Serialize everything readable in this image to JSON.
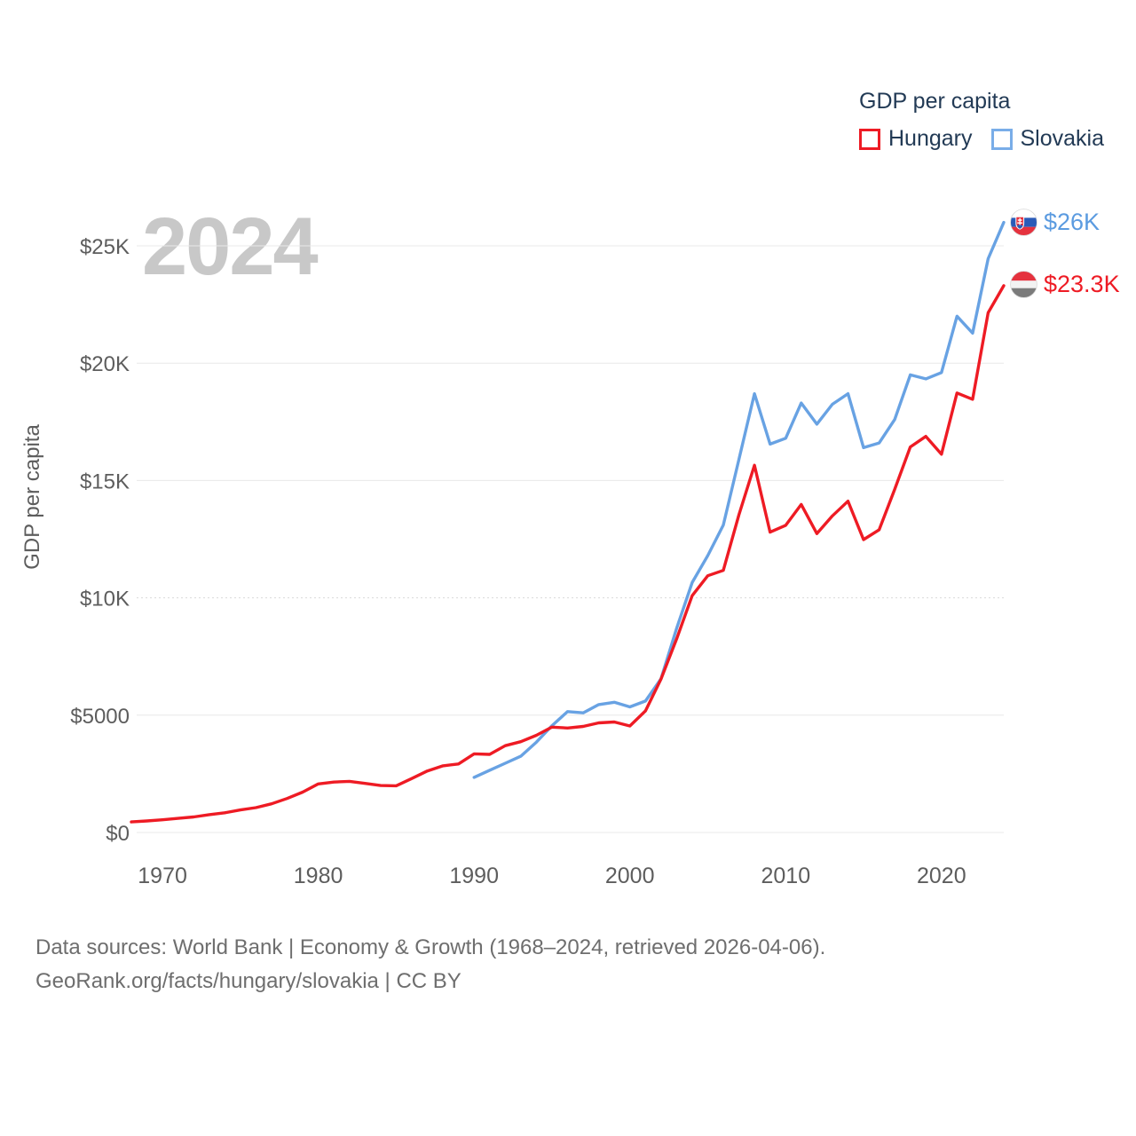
{
  "legend": {
    "title": "GDP per capita",
    "items": [
      {
        "label": "Hungary",
        "color": "#ee1b24"
      },
      {
        "label": "Slovakia",
        "color": "#79ade8"
      }
    ]
  },
  "watermark": "2024",
  "end_labels": {
    "slovakia": {
      "text": "$26K",
      "color": "#5b9be0",
      "flag": "slovakia-flag"
    },
    "hungary": {
      "text": "$23.3K",
      "color": "#ee1b24",
      "flag": "hungary-flag"
    }
  },
  "footer": {
    "line1": "Data sources: World Bank | Economy & Growth (1968–2024, retrieved 2026-04-06).",
    "line2": "GeoRank.org/facts/hungary/slovakia | CC BY"
  },
  "chart_data": {
    "type": "line",
    "title": "GDP per capita",
    "ylabel": "GDP per capita",
    "xlim": [
      1968,
      2024
    ],
    "ylim": [
      0,
      26500
    ],
    "grid": true,
    "legend_position": "top-right",
    "y_ticks": [
      {
        "value": 0,
        "label": "$0"
      },
      {
        "value": 5000,
        "label": "$5000"
      },
      {
        "value": 10000,
        "label": "$10K",
        "dotted": true
      },
      {
        "value": 15000,
        "label": "$15K"
      },
      {
        "value": 20000,
        "label": "$20K"
      },
      {
        "value": 25000,
        "label": "$25K"
      }
    ],
    "x_ticks": [
      1970,
      1980,
      1990,
      2000,
      2010,
      2020
    ],
    "series": [
      {
        "name": "Hungary",
        "color": "#ee1b24",
        "start_year": 1968,
        "end_value_label": "$23.3K",
        "values": [
          450,
          490,
          540,
          600,
          660,
          760,
          840,
          960,
          1060,
          1220,
          1450,
          1720,
          2070,
          2150,
          2180,
          2090,
          2000,
          1990,
          2300,
          2620,
          2840,
          2920,
          3350,
          3330,
          3700,
          3870,
          4140,
          4490,
          4450,
          4520,
          4670,
          4710,
          4540,
          5180,
          6540,
          8250,
          10090,
          10940,
          11170,
          13540,
          15650,
          12800,
          13090,
          13980,
          12740,
          13490,
          14120,
          12480,
          12900,
          14620,
          16430,
          16880,
          16120,
          18730,
          18460,
          22150,
          23300
        ]
      },
      {
        "name": "Slovakia",
        "color": "#68a2e3",
        "start_year": 1990,
        "end_value_label": "$26K",
        "values": [
          2350,
          2650,
          2950,
          3250,
          3850,
          4550,
          5150,
          5100,
          5450,
          5550,
          5350,
          5600,
          6550,
          8700,
          10650,
          11800,
          13100,
          15900,
          18700,
          16550,
          16800,
          18300,
          17400,
          18250,
          18700,
          16400,
          16600,
          17600,
          19500,
          19330,
          19600,
          22000,
          21280,
          24450,
          26000
        ]
      }
    ]
  }
}
